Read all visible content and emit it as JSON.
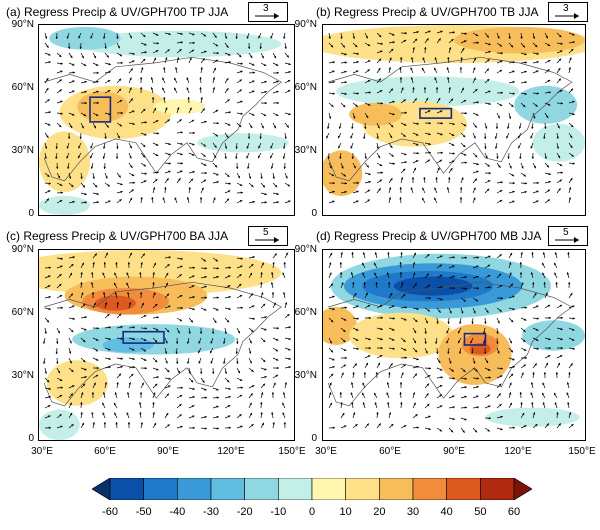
{
  "panels": [
    {
      "id": "a",
      "title": "(a) Regress Precip & UV/GPH700 TP JJA",
      "ref_vector": "3",
      "y_ticks": [
        "90°N",
        "60°N",
        "30°N",
        "0"
      ],
      "x_ticks": []
    },
    {
      "id": "b",
      "title": "(b) Regress Precip & UV/GPH700 TB JJA",
      "ref_vector": "3",
      "y_ticks": [
        "90°N",
        "60°N",
        "30°N",
        "0"
      ],
      "x_ticks": []
    },
    {
      "id": "c",
      "title": "(c) Regress Precip & UV/GPH700 BA JJA",
      "ref_vector": "5",
      "y_ticks": [
        "90°N",
        "60°N",
        "30°N",
        "0"
      ],
      "x_ticks": [
        "30°E",
        "60°E",
        "90°E",
        "120°E",
        "150°E"
      ]
    },
    {
      "id": "d",
      "title": "(d) Regress Precip & UV/GPH700 MB JJA",
      "ref_vector": "5",
      "y_ticks": [
        "90°N",
        "60°N",
        "30°N",
        "0"
      ],
      "x_ticks": [
        "30°E",
        "60°E",
        "90°E",
        "120°E",
        "150°E"
      ]
    }
  ],
  "colorbar": {
    "labels": [
      "-60",
      "-50",
      "-40",
      "-30",
      "-20",
      "-10",
      "0",
      "10",
      "20",
      "30",
      "40",
      "50",
      "60"
    ],
    "colors": [
      "#08306b",
      "#0a50a8",
      "#1f78c8",
      "#3a9ad8",
      "#62bde3",
      "#8fd8e2",
      "#c4efe8",
      "#fff6b0",
      "#fde087",
      "#f7bd5a",
      "#f08c3c",
      "#dc5a20",
      "#b02a10",
      "#7a1408"
    ]
  }
}
